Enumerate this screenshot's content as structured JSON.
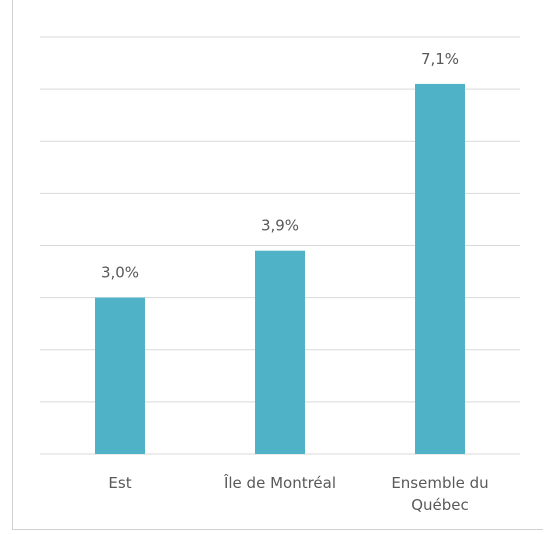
{
  "chart_data": {
    "type": "bar",
    "categories": [
      "Est",
      "Île de Montréal",
      "Ensemble du Québec"
    ],
    "values": [
      3.0,
      3.9,
      7.1
    ],
    "value_labels": [
      "3,0%",
      "3,9%",
      "7,1%"
    ],
    "color": "#4fb2c7",
    "ylim": [
      0,
      8
    ],
    "yticks": [
      0,
      1,
      2,
      3,
      4,
      5,
      6,
      7,
      8
    ],
    "grid": true
  }
}
